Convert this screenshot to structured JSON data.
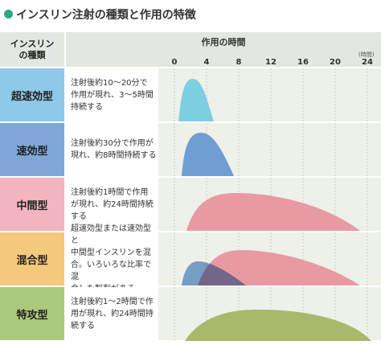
{
  "title": "インスリン注射の種類と作用の特徴",
  "header": {
    "type": "インスリン\nの種類",
    "time": "作用の時間",
    "unit": "(時間)",
    "ticks": [
      0,
      4,
      8,
      12,
      16,
      20,
      24
    ]
  },
  "rows": [
    {
      "type": "超速効型",
      "lines": [
        "注射後約10～20分で",
        "作用が現れ、3～5時間",
        "持続する"
      ]
    },
    {
      "type": "速効型",
      "lines": [
        "注射後約30分で作用が",
        "現れ、約8時間持続する"
      ]
    },
    {
      "type": "中間型",
      "lines": [
        "注射後約1時間で作用",
        "が現れ、約24時間持続",
        "する"
      ]
    },
    {
      "type": "混合型",
      "lines": [
        "超速効型または速効型と",
        "中間型インスリンを混",
        "合。いろいろな比率で混",
        "合した製剤がある"
      ]
    },
    {
      "type": "特攻型",
      "lines": [
        "注射後約1～2時間で作",
        "用が現れ、約24時間持",
        "続する"
      ]
    }
  ]
}
